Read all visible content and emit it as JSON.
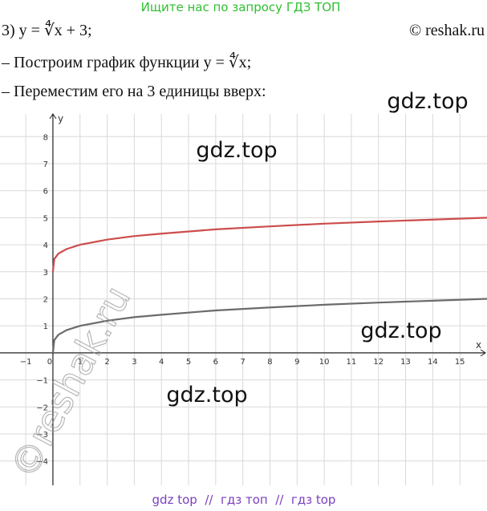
{
  "header": {
    "note": "Ищите нас по запросу ГДЗ ТОП",
    "copyright": "© reshak.ru"
  },
  "lines": [
    "3) y = ∜x + 3;",
    "– Построим график функции y = ∜x;",
    "– Переместим его на 3 единицы вверх:"
  ],
  "watermarks": [
    "gdz.top",
    "gdz.top",
    "gdz.top",
    "gdz.top",
    "©reshak.ru"
  ],
  "footer": "gdz top  //  гдз топ  //  гдз top",
  "chart_data": {
    "type": "line",
    "x_label": "x",
    "y_label": "y",
    "x": [
      0,
      0.05,
      0.2,
      0.5,
      1,
      2,
      3,
      4,
      6,
      8,
      10,
      12,
      14,
      16
    ],
    "series": [
      {
        "name": "y = ∜x + 3",
        "color": "#cc4c4c",
        "values": [
          3,
          3.47,
          3.67,
          3.84,
          4,
          4.19,
          4.32,
          4.41,
          4.57,
          4.68,
          4.78,
          4.86,
          4.93,
          5
        ]
      },
      {
        "name": "y = ∜x",
        "color": "#6b6b6b",
        "values": [
          0,
          0.47,
          0.67,
          0.84,
          1,
          1.19,
          1.32,
          1.41,
          1.57,
          1.68,
          1.78,
          1.86,
          1.93,
          2
        ]
      }
    ],
    "xlim": [
      -1.95,
      16.0
    ],
    "ylim": [
      -4.9,
      8.84
    ],
    "xticks": [
      {
        "value": -1,
        "label": "−1"
      },
      0,
      1,
      2,
      3,
      4,
      5,
      6,
      7,
      8,
      9,
      10,
      11,
      12,
      13,
      14,
      15
    ],
    "yticks": [
      {
        "value": -4,
        "label": "−4"
      },
      {
        "value": -3,
        "label": "−3"
      },
      {
        "value": -2,
        "label": "−2"
      },
      {
        "value": -1,
        "label": "−1"
      },
      1,
      2,
      3,
      4,
      5,
      6,
      7,
      8
    ],
    "grid": true
  }
}
